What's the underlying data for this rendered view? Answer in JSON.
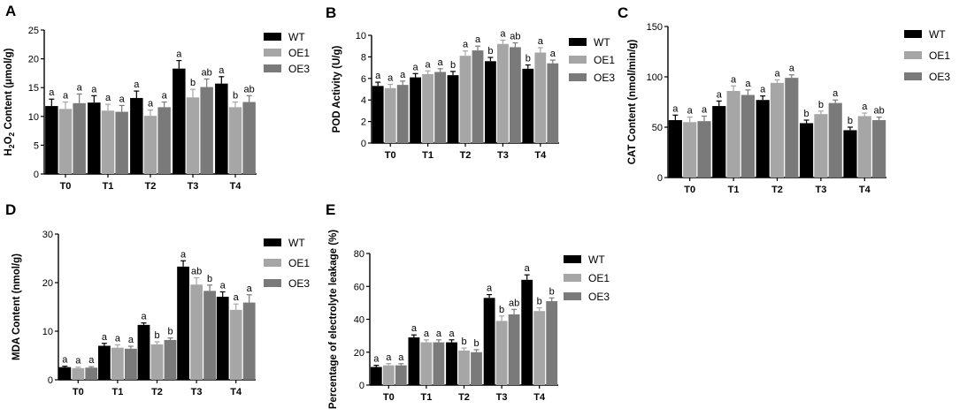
{
  "colors": {
    "WT": "#000000",
    "OE1": "#a6a6a6",
    "OE3": "#7a7a7a"
  },
  "chart_data": [
    {
      "panel": "A",
      "type": "bar",
      "ylabel": "H2O2 Content (μmol/g)",
      "ylabel_parts": {
        "pre": "H",
        "sub1": "2",
        "mid": "O",
        "sub2": "2",
        "post": " Content (μmol/g)"
      },
      "categories": [
        "T0",
        "T1",
        "T2",
        "T3",
        "T4"
      ],
      "ylim": [
        0,
        25
      ],
      "yticks": [
        0,
        5,
        10,
        15,
        20,
        25
      ],
      "series": [
        {
          "name": "WT",
          "values": [
            11.8,
            12.4,
            13.2,
            18.3,
            15.7
          ],
          "errors": [
            1.2,
            1.2,
            1.2,
            1.4,
            1.2
          ],
          "letters": [
            "a",
            "a",
            "a",
            "a",
            "a"
          ]
        },
        {
          "name": "OE1",
          "values": [
            11.3,
            11.0,
            10.1,
            13.3,
            11.6
          ],
          "errors": [
            1.2,
            1.1,
            1.0,
            1.4,
            0.9
          ],
          "letters": [
            "a",
            "a",
            "a",
            "b",
            "b"
          ]
        },
        {
          "name": "OE3",
          "values": [
            12.3,
            10.8,
            11.6,
            15.1,
            12.5
          ],
          "errors": [
            1.6,
            1.1,
            0.9,
            1.4,
            1.1
          ],
          "letters": [
            "a",
            "a",
            "a",
            "ab",
            "ab"
          ]
        }
      ],
      "legend": [
        "WT",
        "OE1",
        "OE3"
      ]
    },
    {
      "panel": "B",
      "type": "bar",
      "ylabel": "POD Activity (U/g)",
      "categories": [
        "T0",
        "T1",
        "T2",
        "T3",
        "T4"
      ],
      "ylim": [
        0,
        10
      ],
      "yticks": [
        0,
        2,
        4,
        6,
        8,
        10
      ],
      "series": [
        {
          "name": "WT",
          "values": [
            5.3,
            6.1,
            6.3,
            7.6,
            6.9
          ],
          "errors": [
            0.35,
            0.35,
            0.35,
            0.35,
            0.35
          ],
          "letters": [
            "a",
            "a",
            "b",
            "b",
            "b"
          ]
        },
        {
          "name": "OE1",
          "values": [
            5.1,
            6.4,
            8.1,
            9.2,
            8.4
          ],
          "errors": [
            0.35,
            0.3,
            0.45,
            0.35,
            0.45
          ],
          "letters": [
            "a",
            "a",
            "a",
            "a",
            "a"
          ]
        },
        {
          "name": "OE3",
          "values": [
            5.4,
            6.6,
            8.6,
            8.9,
            7.4
          ],
          "errors": [
            0.35,
            0.3,
            0.4,
            0.4,
            0.3
          ],
          "letters": [
            "a",
            "a",
            "a",
            "ab",
            "a"
          ]
        }
      ],
      "legend": [
        "WT",
        "OE1",
        "OE3"
      ]
    },
    {
      "panel": "C",
      "type": "bar",
      "ylabel": "CAT Content (nmol/min/g)",
      "categories": [
        "T0",
        "T1",
        "T2",
        "T3",
        "T4"
      ],
      "ylim": [
        0,
        150
      ],
      "yticks": [
        0,
        50,
        100,
        150
      ],
      "series": [
        {
          "name": "WT",
          "values": [
            57,
            71,
            77,
            54,
            47
          ],
          "errors": [
            5,
            5,
            4,
            3,
            3
          ],
          "letters": [
            "a",
            "a",
            "a",
            "b",
            "b"
          ]
        },
        {
          "name": "OE1",
          "values": [
            55,
            86,
            94,
            63,
            61
          ],
          "errors": [
            5,
            5,
            3,
            3,
            3
          ],
          "letters": [
            "a",
            "a",
            "a",
            "b",
            "a"
          ]
        },
        {
          "name": "OE3",
          "values": [
            56,
            82,
            99,
            74,
            57
          ],
          "errors": [
            5,
            5,
            3,
            3,
            3
          ],
          "letters": [
            "a",
            "a",
            "a",
            "a",
            "ab"
          ]
        }
      ],
      "legend": [
        "WT",
        "OE1",
        "OE3"
      ]
    },
    {
      "panel": "D",
      "type": "bar",
      "ylabel": "MDA Content (nmol/g)",
      "categories": [
        "T0",
        "T1",
        "T2",
        "T3",
        "T4"
      ],
      "ylim": [
        0,
        30
      ],
      "yticks": [
        0,
        10,
        20,
        30
      ],
      "series": [
        {
          "name": "WT",
          "values": [
            2.6,
            7.0,
            11.3,
            23.3,
            17.1
          ],
          "errors": [
            0.2,
            0.5,
            0.4,
            1.2,
            1.0
          ],
          "letters": [
            "a",
            "a",
            "a",
            "a",
            "a"
          ]
        },
        {
          "name": "OE1",
          "values": [
            2.4,
            6.6,
            7.3,
            19.6,
            14.4
          ],
          "errors": [
            0.2,
            0.6,
            0.5,
            1.4,
            1.2
          ],
          "letters": [
            "a",
            "a",
            "b",
            "ab",
            "a"
          ]
        },
        {
          "name": "OE3",
          "values": [
            2.5,
            6.4,
            8.2,
            18.3,
            15.9
          ],
          "errors": [
            0.2,
            0.5,
            0.4,
            1.2,
            1.6
          ],
          "letters": [
            "a",
            "a",
            "b",
            "b",
            "a"
          ]
        }
      ],
      "legend": [
        "WT",
        "OE1",
        "OE3"
      ]
    },
    {
      "panel": "E",
      "type": "bar",
      "ylabel": "Percentage of electrolyte leakage (%)",
      "categories": [
        "T0",
        "T1",
        "T2",
        "T3",
        "T4"
      ],
      "ylim": [
        0,
        80
      ],
      "yticks": [
        0,
        20,
        40,
        60,
        80
      ],
      "series": [
        {
          "name": "WT",
          "values": [
            11,
            29,
            26,
            53,
            64
          ],
          "errors": [
            1,
            1.5,
            1.5,
            2,
            3
          ],
          "letters": [
            "a",
            "a",
            "a",
            "a",
            "a"
          ]
        },
        {
          "name": "OE1",
          "values": [
            12,
            26,
            21,
            39,
            45
          ],
          "errors": [
            1,
            1.5,
            1.5,
            3,
            2
          ],
          "letters": [
            "a",
            "a",
            "b",
            "b",
            "b"
          ]
        },
        {
          "name": "OE3",
          "values": [
            12,
            26,
            20,
            43,
            51
          ],
          "errors": [
            1,
            1.5,
            1.5,
            3,
            2
          ],
          "letters": [
            "a",
            "a",
            "b",
            "ab",
            "b"
          ]
        }
      ],
      "legend": [
        "WT",
        "OE1",
        "OE3"
      ]
    }
  ]
}
